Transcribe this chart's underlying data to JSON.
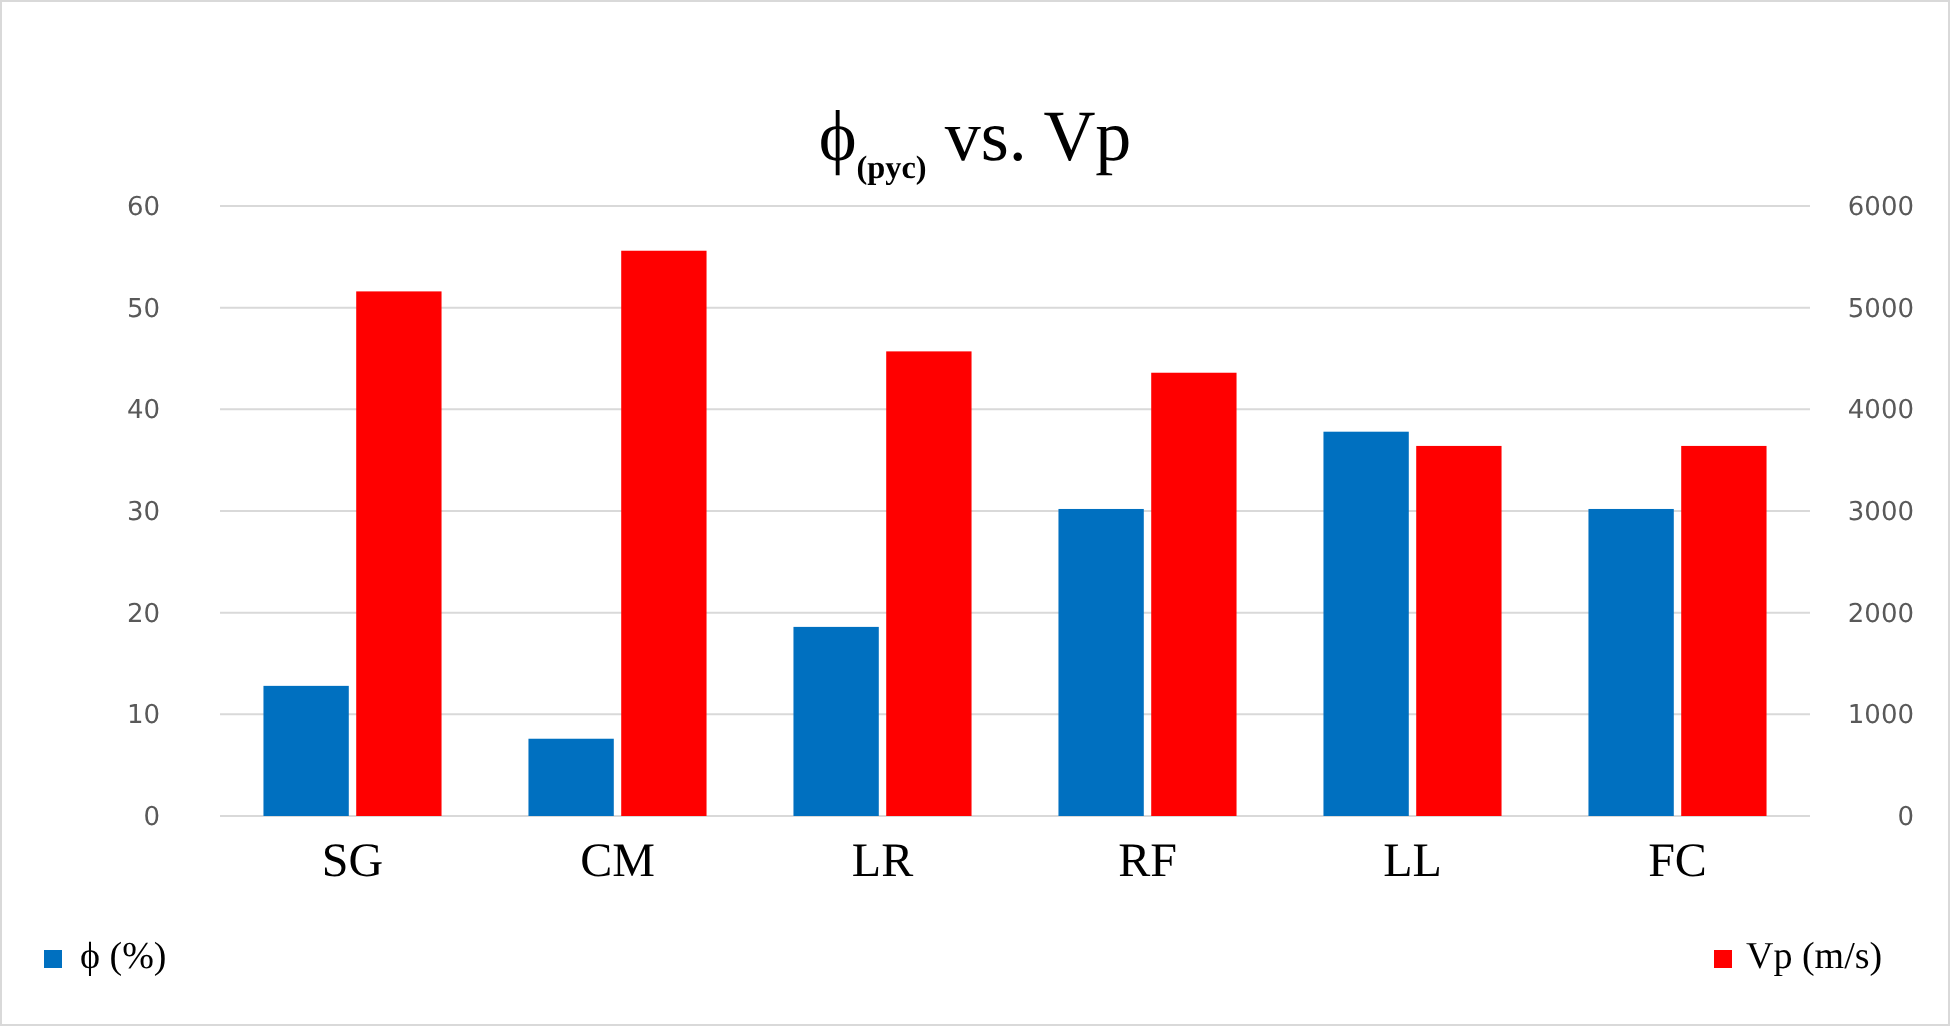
{
  "chart_data": {
    "type": "bar",
    "title": "ϕ$_{(pyc)}$ vs. Vp",
    "categories": [
      "SG",
      "CM",
      "LR",
      "RF",
      "LL",
      "FC"
    ],
    "series": [
      {
        "name": "ϕ (%)",
        "color": "#0070c0",
        "values": [
          12.8,
          7.6,
          18.6,
          30.2,
          37.8,
          30.2
        ]
      },
      {
        "name": "Vp (m/s)",
        "color": "#ff0000",
        "axis": "y2",
        "values": [
          5160,
          5560,
          4570,
          4360,
          3640,
          3640
        ]
      }
    ],
    "ylim": [
      0,
      60
    ],
    "yticks": [
      0,
      10,
      20,
      30,
      40,
      50,
      60
    ],
    "y2lim": [
      0,
      6000
    ],
    "y2ticks": [
      0,
      1000,
      2000,
      3000,
      4000,
      5000,
      6000
    ],
    "grid": "y",
    "legend": "bottom"
  }
}
